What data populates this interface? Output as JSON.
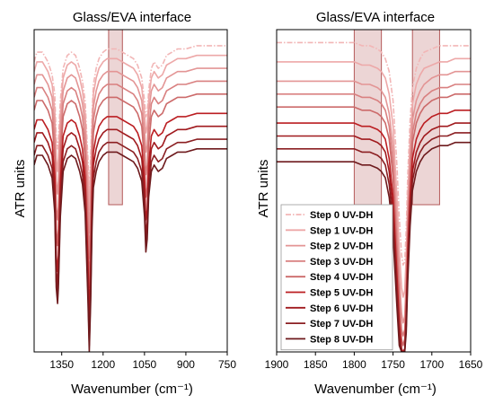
{
  "chart_data": [
    {
      "type": "line",
      "title": "Glass/EVA interface",
      "xlabel": "Wavenumber (cm⁻¹)",
      "ylabel": "ATR units",
      "x_reversed": true,
      "xlim": [
        1450,
        750
      ],
      "ylim": [
        0,
        1
      ],
      "xticks": [
        1350,
        1200,
        1050,
        900,
        750
      ],
      "y_ticks_shown": false,
      "highlight_regions": [
        [
          1180,
          1130
        ]
      ],
      "x": [
        1450,
        1440,
        1420,
        1400,
        1385,
        1375,
        1370,
        1365,
        1362,
        1355,
        1345,
        1330,
        1315,
        1300,
        1285,
        1275,
        1265,
        1255,
        1250,
        1245,
        1240,
        1235,
        1225,
        1215,
        1200,
        1185,
        1170,
        1150,
        1130,
        1110,
        1090,
        1075,
        1060,
        1050,
        1045,
        1040,
        1035,
        1025,
        1015,
        1000,
        985,
        970,
        950,
        930,
        900,
        860,
        820,
        780,
        750
      ],
      "series": [
        {
          "name": "Step 0 UV-DH",
          "color": "#f2b6b6",
          "dash": true,
          "values": [
            0.9,
            0.93,
            0.93,
            0.9,
            0.86,
            0.8,
            0.66,
            0.63,
            0.66,
            0.78,
            0.88,
            0.92,
            0.93,
            0.92,
            0.88,
            0.84,
            0.78,
            0.6,
            0.5,
            0.6,
            0.74,
            0.83,
            0.88,
            0.91,
            0.93,
            0.94,
            0.94,
            0.94,
            0.93,
            0.92,
            0.91,
            0.89,
            0.85,
            0.78,
            0.73,
            0.74,
            0.81,
            0.88,
            0.9,
            0.88,
            0.89,
            0.92,
            0.93,
            0.94,
            0.94,
            0.95,
            0.95,
            0.95,
            0.95
          ]
        },
        {
          "name": "Step 1 UV-DH",
          "color": "#eda8a8",
          "dash": false,
          "values": [
            0.87,
            0.9,
            0.9,
            0.87,
            0.83,
            0.75,
            0.6,
            0.56,
            0.6,
            0.74,
            0.85,
            0.89,
            0.9,
            0.89,
            0.85,
            0.81,
            0.74,
            0.55,
            0.44,
            0.55,
            0.7,
            0.8,
            0.85,
            0.88,
            0.9,
            0.91,
            0.91,
            0.91,
            0.9,
            0.89,
            0.88,
            0.86,
            0.82,
            0.74,
            0.68,
            0.7,
            0.78,
            0.85,
            0.87,
            0.85,
            0.86,
            0.89,
            0.9,
            0.91,
            0.91,
            0.92,
            0.92,
            0.92,
            0.92
          ]
        },
        {
          "name": "Step 2 UV-DH",
          "color": "#e39595",
          "dash": false,
          "values": [
            0.83,
            0.86,
            0.86,
            0.83,
            0.79,
            0.7,
            0.53,
            0.49,
            0.53,
            0.69,
            0.81,
            0.85,
            0.86,
            0.85,
            0.81,
            0.77,
            0.7,
            0.49,
            0.37,
            0.49,
            0.66,
            0.76,
            0.81,
            0.84,
            0.86,
            0.87,
            0.87,
            0.87,
            0.86,
            0.85,
            0.84,
            0.82,
            0.78,
            0.69,
            0.62,
            0.64,
            0.74,
            0.81,
            0.83,
            0.81,
            0.82,
            0.85,
            0.86,
            0.87,
            0.87,
            0.88,
            0.88,
            0.88,
            0.88
          ]
        },
        {
          "name": "Step 3 UV-DH",
          "color": "#d98080",
          "dash": false,
          "values": [
            0.79,
            0.82,
            0.82,
            0.79,
            0.75,
            0.65,
            0.45,
            0.41,
            0.45,
            0.64,
            0.77,
            0.81,
            0.82,
            0.81,
            0.77,
            0.73,
            0.65,
            0.42,
            0.29,
            0.42,
            0.61,
            0.72,
            0.77,
            0.8,
            0.82,
            0.83,
            0.83,
            0.83,
            0.82,
            0.81,
            0.8,
            0.78,
            0.74,
            0.64,
            0.55,
            0.58,
            0.69,
            0.77,
            0.79,
            0.77,
            0.78,
            0.81,
            0.82,
            0.83,
            0.83,
            0.84,
            0.84,
            0.84,
            0.84
          ]
        },
        {
          "name": "Step 4 UV-DH",
          "color": "#cc6a6a",
          "dash": false,
          "values": [
            0.75,
            0.78,
            0.78,
            0.75,
            0.71,
            0.6,
            0.38,
            0.33,
            0.38,
            0.59,
            0.73,
            0.77,
            0.78,
            0.77,
            0.73,
            0.69,
            0.6,
            0.35,
            0.2,
            0.35,
            0.56,
            0.68,
            0.73,
            0.76,
            0.78,
            0.79,
            0.79,
            0.79,
            0.78,
            0.77,
            0.76,
            0.74,
            0.7,
            0.59,
            0.48,
            0.51,
            0.64,
            0.73,
            0.75,
            0.73,
            0.74,
            0.77,
            0.78,
            0.79,
            0.79,
            0.8,
            0.8,
            0.8,
            0.8
          ]
        },
        {
          "name": "Step 5 UV-DH",
          "color": "#bb1e22",
          "dash": false,
          "values": [
            0.69,
            0.72,
            0.72,
            0.69,
            0.65,
            0.54,
            0.3,
            0.25,
            0.3,
            0.53,
            0.67,
            0.71,
            0.72,
            0.71,
            0.67,
            0.63,
            0.54,
            0.28,
            0.1,
            0.28,
            0.5,
            0.62,
            0.67,
            0.7,
            0.72,
            0.73,
            0.73,
            0.73,
            0.72,
            0.71,
            0.7,
            0.68,
            0.64,
            0.53,
            0.41,
            0.44,
            0.58,
            0.67,
            0.69,
            0.67,
            0.68,
            0.71,
            0.72,
            0.73,
            0.73,
            0.74,
            0.74,
            0.74,
            0.74
          ]
        },
        {
          "name": "Step 6 UV-DH",
          "color": "#a01a1e",
          "dash": false,
          "values": [
            0.65,
            0.68,
            0.68,
            0.65,
            0.61,
            0.5,
            0.26,
            0.2,
            0.26,
            0.49,
            0.63,
            0.67,
            0.68,
            0.67,
            0.63,
            0.59,
            0.5,
            0.23,
            0.04,
            0.23,
            0.46,
            0.58,
            0.63,
            0.66,
            0.68,
            0.69,
            0.69,
            0.69,
            0.68,
            0.67,
            0.66,
            0.64,
            0.6,
            0.49,
            0.36,
            0.4,
            0.54,
            0.63,
            0.65,
            0.63,
            0.64,
            0.67,
            0.68,
            0.69,
            0.69,
            0.7,
            0.7,
            0.7,
            0.7
          ]
        },
        {
          "name": "Step 7 UV-DH",
          "color": "#8b1f22",
          "dash": false,
          "values": [
            0.61,
            0.64,
            0.64,
            0.61,
            0.57,
            0.46,
            0.22,
            0.17,
            0.22,
            0.45,
            0.59,
            0.63,
            0.64,
            0.63,
            0.59,
            0.55,
            0.46,
            0.19,
            0.02,
            0.19,
            0.42,
            0.54,
            0.59,
            0.62,
            0.64,
            0.65,
            0.65,
            0.65,
            0.64,
            0.63,
            0.62,
            0.6,
            0.56,
            0.45,
            0.33,
            0.37,
            0.5,
            0.59,
            0.61,
            0.59,
            0.6,
            0.63,
            0.64,
            0.65,
            0.65,
            0.66,
            0.66,
            0.66,
            0.66
          ]
        },
        {
          "name": "Step 8 UV-DH",
          "color": "#6e1a1d",
          "dash": false,
          "values": [
            0.58,
            0.61,
            0.61,
            0.58,
            0.54,
            0.43,
            0.2,
            0.15,
            0.2,
            0.42,
            0.56,
            0.6,
            0.61,
            0.6,
            0.56,
            0.52,
            0.43,
            0.16,
            0.0,
            0.16,
            0.39,
            0.51,
            0.56,
            0.59,
            0.61,
            0.62,
            0.62,
            0.62,
            0.61,
            0.6,
            0.59,
            0.57,
            0.53,
            0.42,
            0.31,
            0.35,
            0.48,
            0.56,
            0.58,
            0.56,
            0.57,
            0.6,
            0.61,
            0.62,
            0.62,
            0.63,
            0.63,
            0.63,
            0.63
          ]
        }
      ]
    },
    {
      "type": "line",
      "title": "Glass/EVA interface",
      "xlabel": "Wavenumber (cm⁻¹)",
      "ylabel": "ATR units",
      "x_reversed": true,
      "xlim": [
        1900,
        1650
      ],
      "ylim": [
        0,
        1
      ],
      "xticks": [
        1900,
        1850,
        1800,
        1750,
        1700,
        1650
      ],
      "y_ticks_shown": false,
      "highlight_regions": [
        [
          1800,
          1765
        ],
        [
          1725,
          1690
        ]
      ],
      "legend": "bottom-left",
      "x": [
        1900,
        1880,
        1860,
        1840,
        1820,
        1800,
        1790,
        1780,
        1770,
        1765,
        1760,
        1755,
        1750,
        1745,
        1742,
        1739,
        1737,
        1735,
        1733,
        1731,
        1728,
        1725,
        1720,
        1715,
        1710,
        1700,
        1690,
        1680,
        1670,
        1660,
        1650
      ],
      "series": [
        {
          "name": "Step 0 UV-DH",
          "color": "#f2b6b6",
          "dash": true,
          "values": [
            0.96,
            0.96,
            0.96,
            0.96,
            0.96,
            0.96,
            0.95,
            0.95,
            0.94,
            0.93,
            0.91,
            0.87,
            0.78,
            0.58,
            0.42,
            0.3,
            0.27,
            0.28,
            0.38,
            0.55,
            0.72,
            0.82,
            0.88,
            0.91,
            0.93,
            0.94,
            0.95,
            0.95,
            0.95,
            0.95,
            0.95
          ]
        },
        {
          "name": "Step 1 UV-DH",
          "color": "#eda8a8",
          "dash": false,
          "values": [
            0.9,
            0.9,
            0.9,
            0.9,
            0.9,
            0.9,
            0.89,
            0.89,
            0.88,
            0.87,
            0.85,
            0.8,
            0.7,
            0.48,
            0.32,
            0.2,
            0.17,
            0.19,
            0.3,
            0.48,
            0.66,
            0.77,
            0.83,
            0.86,
            0.88,
            0.89,
            0.9,
            0.9,
            0.91,
            0.91,
            0.91
          ]
        },
        {
          "name": "Step 2 UV-DH",
          "color": "#e39595",
          "dash": false,
          "values": [
            0.84,
            0.84,
            0.84,
            0.84,
            0.84,
            0.84,
            0.83,
            0.83,
            0.82,
            0.81,
            0.79,
            0.74,
            0.63,
            0.4,
            0.24,
            0.12,
            0.09,
            0.11,
            0.23,
            0.42,
            0.6,
            0.72,
            0.78,
            0.81,
            0.83,
            0.85,
            0.86,
            0.86,
            0.87,
            0.87,
            0.87
          ]
        },
        {
          "name": "Step 3 UV-DH",
          "color": "#d98080",
          "dash": false,
          "values": [
            0.8,
            0.8,
            0.8,
            0.8,
            0.8,
            0.8,
            0.79,
            0.79,
            0.78,
            0.77,
            0.75,
            0.7,
            0.58,
            0.34,
            0.18,
            0.07,
            0.05,
            0.07,
            0.19,
            0.38,
            0.56,
            0.68,
            0.74,
            0.77,
            0.79,
            0.81,
            0.82,
            0.82,
            0.83,
            0.83,
            0.83
          ]
        },
        {
          "name": "Step 4 UV-DH",
          "color": "#cc6a6a",
          "dash": false,
          "values": [
            0.76,
            0.76,
            0.76,
            0.76,
            0.76,
            0.76,
            0.75,
            0.75,
            0.74,
            0.73,
            0.71,
            0.66,
            0.54,
            0.3,
            0.14,
            0.04,
            0.02,
            0.04,
            0.16,
            0.35,
            0.53,
            0.65,
            0.71,
            0.74,
            0.76,
            0.78,
            0.79,
            0.79,
            0.8,
            0.8,
            0.8
          ]
        },
        {
          "name": "Step 5 UV-DH",
          "color": "#bb1e22",
          "dash": false,
          "values": [
            0.71,
            0.71,
            0.71,
            0.71,
            0.71,
            0.71,
            0.7,
            0.7,
            0.69,
            0.68,
            0.66,
            0.6,
            0.48,
            0.24,
            0.09,
            0.01,
            0.0,
            0.01,
            0.12,
            0.31,
            0.48,
            0.6,
            0.66,
            0.69,
            0.71,
            0.73,
            0.74,
            0.74,
            0.75,
            0.75,
            0.75
          ]
        },
        {
          "name": "Step 6 UV-DH",
          "color": "#a01a1e",
          "dash": false,
          "values": [
            0.67,
            0.67,
            0.67,
            0.67,
            0.67,
            0.67,
            0.66,
            0.66,
            0.65,
            0.64,
            0.62,
            0.56,
            0.44,
            0.2,
            0.06,
            0.0,
            0.0,
            0.0,
            0.1,
            0.28,
            0.45,
            0.56,
            0.62,
            0.65,
            0.67,
            0.69,
            0.7,
            0.7,
            0.71,
            0.71,
            0.71
          ]
        },
        {
          "name": "Step 7 UV-DH",
          "color": "#8b1f22",
          "dash": false,
          "values": [
            0.63,
            0.63,
            0.63,
            0.63,
            0.63,
            0.63,
            0.62,
            0.62,
            0.61,
            0.6,
            0.58,
            0.52,
            0.4,
            0.17,
            0.04,
            0.0,
            0.0,
            0.0,
            0.08,
            0.25,
            0.42,
            0.53,
            0.59,
            0.62,
            0.64,
            0.66,
            0.67,
            0.67,
            0.68,
            0.68,
            0.68
          ]
        },
        {
          "name": "Step 8 UV-DH",
          "color": "#6e1a1d",
          "dash": false,
          "values": [
            0.59,
            0.59,
            0.59,
            0.59,
            0.59,
            0.59,
            0.58,
            0.58,
            0.57,
            0.56,
            0.54,
            0.48,
            0.36,
            0.14,
            0.02,
            0.0,
            0.0,
            0.0,
            0.06,
            0.22,
            0.39,
            0.5,
            0.56,
            0.59,
            0.61,
            0.63,
            0.64,
            0.64,
            0.65,
            0.65,
            0.65
          ]
        }
      ]
    }
  ]
}
